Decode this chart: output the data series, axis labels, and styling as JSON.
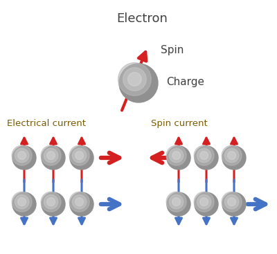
{
  "title_electron": "Electron",
  "label_spin": "Spin",
  "label_charge": "Charge",
  "label_elec_current": "Electrical current",
  "label_spin_current": "Spin current",
  "bg_color": "#ffffff",
  "red_color": "#d42020",
  "blue_color": "#4472c4",
  "text_color_dark": "#404040",
  "text_color_brown": "#7a5c00",
  "figsize": [
    4.0,
    3.67
  ],
  "dpi": 100
}
